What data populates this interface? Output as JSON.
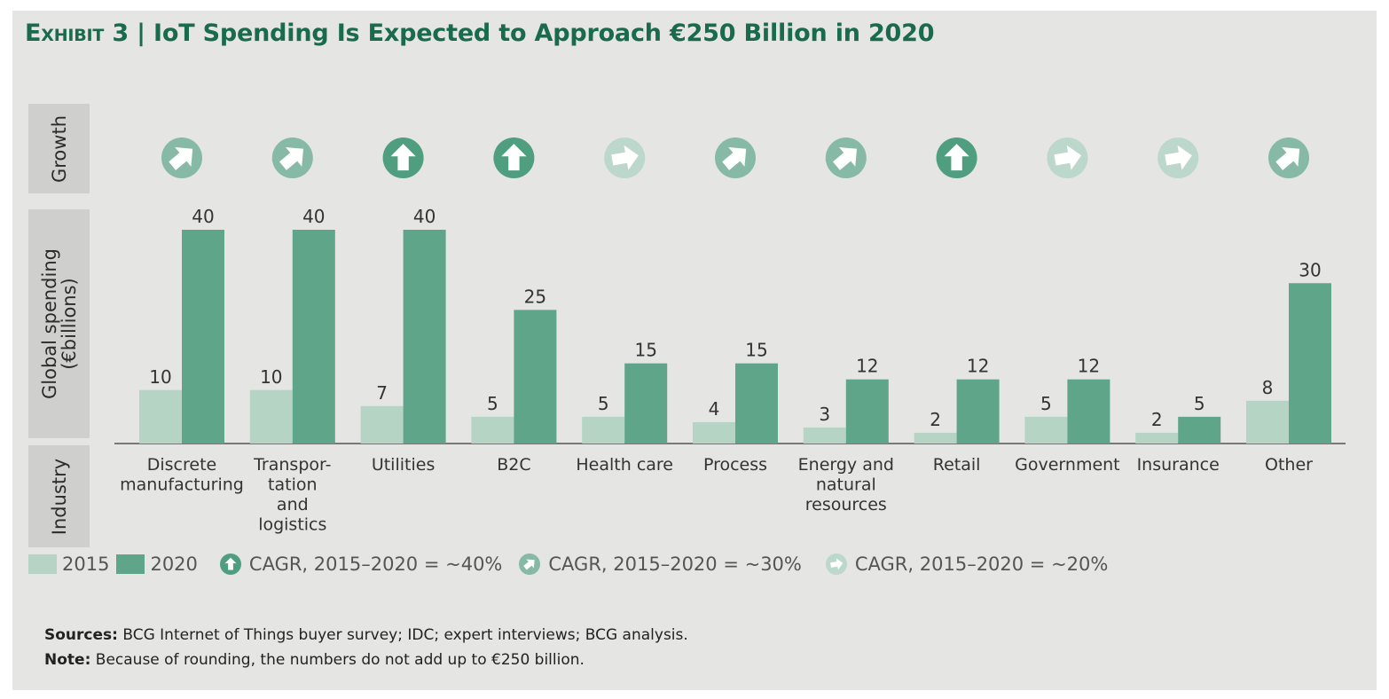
{
  "title": {
    "exhibit": "Exhibit 3",
    "separator": "|",
    "text": "IoT Spending Is Expected to Approach €250 Billion in 2020"
  },
  "side_labels": {
    "growth": "Growth",
    "spending_line1": "Global spending",
    "spending_line2": "(€billions)",
    "industry": "Industry"
  },
  "colors": {
    "s2015": "#b5d4c3",
    "s2020": "#5fa58a",
    "growth40": "#4f9e80",
    "growth30": "#86b9a6",
    "growth20": "#bcd7cc",
    "panel": "#e5e5e3",
    "title": "#1a6b4d"
  },
  "legend": {
    "s2015": "2015",
    "s2020": "2020",
    "g40": "CAGR, 2015–2020 = ~40%",
    "g30": "CAGR, 2015–2020 = ~30%",
    "g20": "CAGR, 2015–2020 = ~20%"
  },
  "footer": {
    "sources_label": "Sources:",
    "sources_text": "BCG Internet of Things buyer survey; IDC; expert interviews; BCG analysis.",
    "note_label": "Note:",
    "note_text": "Because of rounding, the numbers do not add up to €250 billion."
  },
  "chart_data": {
    "type": "bar",
    "categories": [
      [
        "Discrete",
        "manufacturing"
      ],
      [
        "Transpor-",
        "tation",
        "and",
        "logistics"
      ],
      [
        "Utilities"
      ],
      [
        "B2C"
      ],
      [
        "Health care"
      ],
      [
        "Process"
      ],
      [
        "Energy and",
        "natural",
        "resources"
      ],
      [
        "Retail"
      ],
      [
        "Government"
      ],
      [
        "Insurance"
      ],
      [
        "Other"
      ]
    ],
    "series": [
      {
        "name": "2015",
        "values": [
          10,
          10,
          7,
          5,
          5,
          4,
          3,
          2,
          5,
          2,
          8
        ]
      },
      {
        "name": "2020",
        "values": [
          40,
          40,
          40,
          25,
          15,
          15,
          12,
          12,
          12,
          5,
          30
        ]
      }
    ],
    "growth": [
      "~30%",
      "~30%",
      "~40%",
      "~40%",
      "~20%",
      "~30%",
      "~30%",
      "~40%",
      "~20%",
      "~20%",
      "~30%"
    ],
    "ylim": [
      0,
      40
    ],
    "grid": false,
    "legend_position": "bottom-left"
  }
}
